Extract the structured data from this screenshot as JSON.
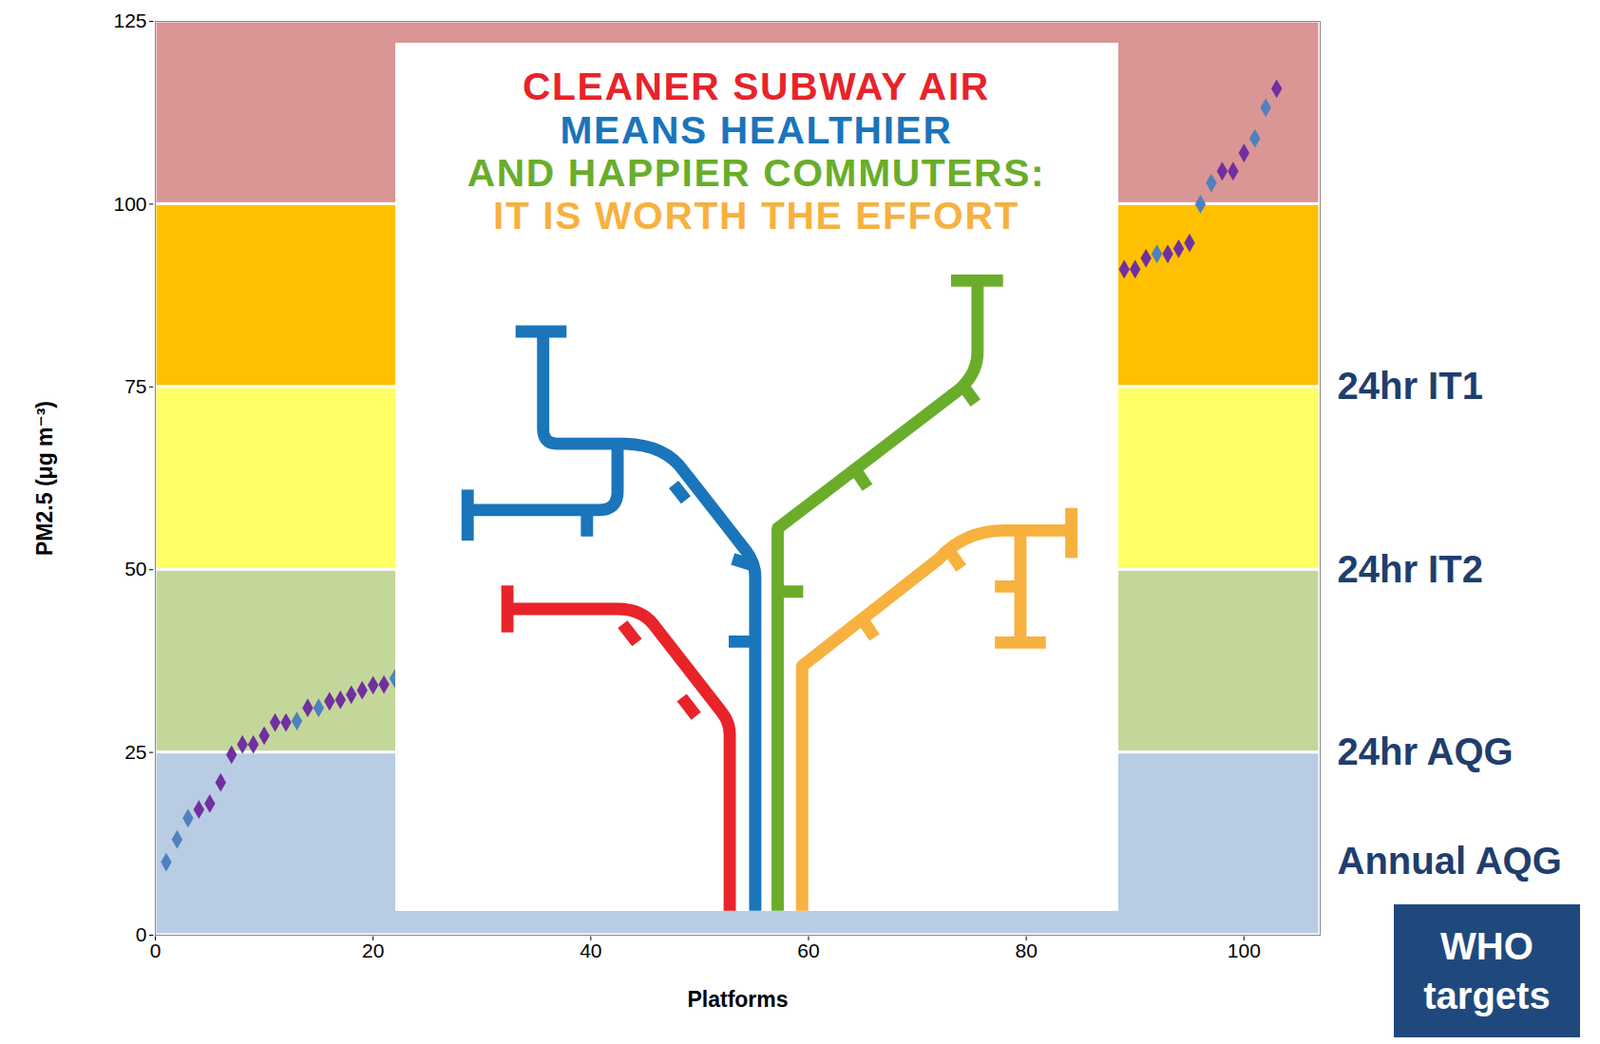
{
  "chart_data": {
    "type": "scatter",
    "xlabel": "Platforms",
    "ylabel": "PM2.5 (μg m⁻³)",
    "x": [
      1,
      2,
      3,
      4,
      5,
      6,
      7,
      8,
      9,
      10,
      11,
      12,
      13,
      14,
      15,
      16,
      17,
      18,
      19,
      20,
      21,
      22,
      89,
      90,
      91,
      92,
      93,
      94,
      95,
      96,
      97,
      98,
      99,
      100,
      101,
      102,
      103
    ],
    "values": [
      10,
      13.1,
      16,
      17.2,
      18,
      20.9,
      24.7,
      26.1,
      26.1,
      27.3,
      29.1,
      29.1,
      29.3,
      31.1,
      31.1,
      32,
      32.2,
      32.9,
      33.5,
      34.2,
      34.3,
      35.1,
      91.1,
      91.1,
      92.6,
      93.2,
      93.2,
      93.9,
      94.7,
      100,
      102.9,
      104.5,
      104.5,
      107,
      109,
      113.2,
      115.8
    ],
    "colors": [
      "#4f81bd",
      "#4f81bd",
      "#4f81bd",
      "#7030a0",
      "#7030a0",
      "#7030a0",
      "#7030a0",
      "#7030a0",
      "#7030a0",
      "#7030a0",
      "#7030a0",
      "#7030a0",
      "#4f81bd",
      "#7030a0",
      "#4f81bd",
      "#7030a0",
      "#7030a0",
      "#7030a0",
      "#7030a0",
      "#7030a0",
      "#7030a0",
      "#4f81bd",
      "#7030a0",
      "#7030a0",
      "#7030a0",
      "#4f81bd",
      "#7030a0",
      "#7030a0",
      "#7030a0",
      "#4f81bd",
      "#4f81bd",
      "#7030a0",
      "#7030a0",
      "#7030a0",
      "#4f81bd",
      "#4f81bd",
      "#7030a0"
    ],
    "marker": "diamond",
    "xlim": [
      0,
      107
    ],
    "ylim": [
      0,
      125
    ],
    "xticks": [
      0,
      20,
      40,
      60,
      80,
      100
    ],
    "yticks": [
      0,
      25,
      50,
      75,
      100,
      125
    ],
    "bands": [
      {
        "from": 0,
        "to": 25,
        "color": "#b8cce4"
      },
      {
        "from": 25,
        "to": 50,
        "color": "#c4d79b"
      },
      {
        "from": 50,
        "to": 75,
        "color": "#ffff66"
      },
      {
        "from": 75,
        "to": 100,
        "color": "#ffc000"
      },
      {
        "from": 100,
        "to": 125,
        "color": "#da9694"
      }
    ],
    "targets": [
      {
        "value": 75,
        "label": "24hr IT1"
      },
      {
        "value": 50,
        "label": "24hr IT2"
      },
      {
        "value": 25,
        "label": "24hr AQG"
      },
      {
        "value": 10,
        "label": "Annual AQG"
      }
    ],
    "targets_title": "WHO targets"
  },
  "poster": {
    "title_lines": [
      {
        "text": "CLEANER SUBWAY AIR",
        "color": "#e8232a"
      },
      {
        "text": "MEANS HEALTHIER",
        "color": "#1a75bb"
      },
      {
        "text": "AND HAPPIER COMMUTERS:",
        "color": "#6aad2a"
      },
      {
        "text": "IT IS WORTH THE EFFORT",
        "color": "#f7b13e"
      }
    ]
  }
}
